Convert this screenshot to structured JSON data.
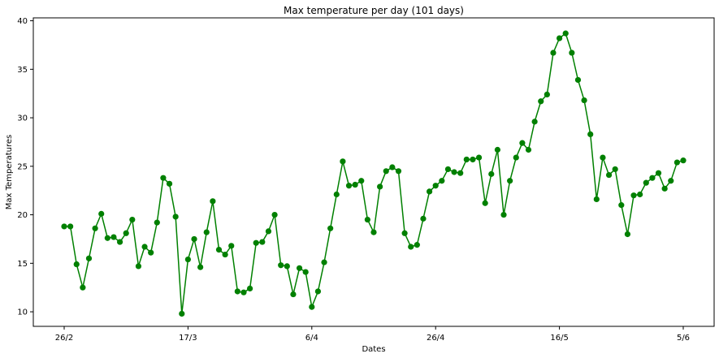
{
  "chart_data": {
    "type": "line",
    "title": "Max temperature per day (101 days)",
    "xlabel": "Dates",
    "ylabel": "Max Temperatures",
    "ylim": [
      8.5,
      40.3
    ],
    "yticks": [
      10,
      15,
      20,
      25,
      30,
      35,
      40
    ],
    "xtick_labels": [
      {
        "index": 0,
        "label": "26/2"
      },
      {
        "index": 20,
        "label": "17/3"
      },
      {
        "index": 40,
        "label": "6/4"
      },
      {
        "index": 60,
        "label": "26/4"
      },
      {
        "index": 80,
        "label": "16/5"
      },
      {
        "index": 100,
        "label": "5/6"
      }
    ],
    "grid": false,
    "series": [
      {
        "color": "#008000",
        "marker": "circle",
        "values": [
          18.8,
          18.8,
          14.9,
          12.5,
          15.5,
          18.6,
          20.1,
          17.6,
          17.7,
          17.2,
          18.1,
          19.5,
          14.7,
          16.7,
          16.1,
          19.2,
          23.8,
          23.2,
          19.8,
          9.8,
          15.4,
          17.5,
          14.6,
          18.2,
          21.4,
          16.4,
          15.9,
          16.8,
          12.1,
          12.0,
          12.4,
          17.1,
          17.2,
          18.3,
          20.0,
          14.8,
          14.7,
          11.8,
          14.5,
          14.1,
          10.5,
          12.1,
          15.1,
          18.6,
          22.1,
          25.5,
          23.0,
          23.1,
          23.5,
          19.5,
          18.2,
          22.9,
          24.5,
          24.9,
          24.5,
          18.1,
          16.7,
          16.9,
          19.6,
          22.4,
          23.0,
          23.5,
          24.7,
          24.4,
          24.3,
          25.7,
          25.7,
          25.9,
          21.2,
          24.2,
          26.7,
          20.0,
          23.5,
          25.9,
          27.4,
          26.7,
          29.6,
          31.7,
          32.4,
          36.7,
          38.2,
          38.7,
          36.7,
          33.9,
          31.8,
          28.3,
          21.6,
          25.9,
          24.1,
          24.7,
          21.0,
          18.0,
          22.0,
          22.1,
          23.3,
          23.8,
          24.3,
          22.7,
          23.5,
          25.4,
          25.6
        ]
      }
    ]
  }
}
